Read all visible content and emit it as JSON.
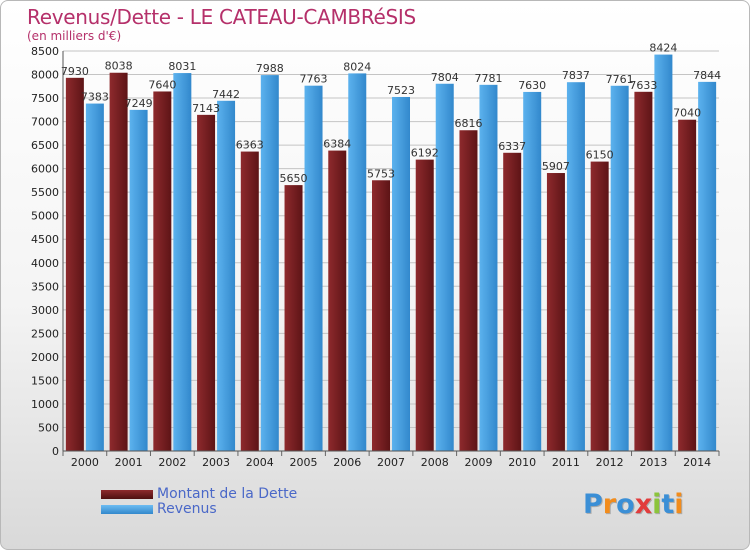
{
  "title": "Revenus/Dette - LE CATEAU-CAMBRéSIS",
  "subtitle": "(en milliers d'€)",
  "logo_text": "Proxiti",
  "colors": {
    "dette": "#7a2224",
    "revenus": "#4aa3e3",
    "title": "#b5306a",
    "legend_text": "#4a68c8",
    "grid": "#c4c4c4"
  },
  "chart_data": {
    "type": "bar",
    "title": "Revenus/Dette - LE CATEAU-CAMBRéSIS",
    "subtitle": "(en milliers d'€)",
    "xlabel": "",
    "ylabel": "",
    "ylim": [
      0,
      8500
    ],
    "ytick_step": 500,
    "grid": true,
    "legend_position": "bottom-left",
    "categories": [
      "2000",
      "2001",
      "2002",
      "2003",
      "2004",
      "2005",
      "2006",
      "2007",
      "2008",
      "2009",
      "2010",
      "2011",
      "2012",
      "2013",
      "2014"
    ],
    "series": [
      {
        "name": "Montant de la Dette",
        "values": [
          7930,
          8038,
          7640,
          7143,
          6363,
          5650,
          6384,
          5753,
          6192,
          6816,
          6337,
          5907,
          6150,
          7633,
          7040
        ],
        "labels": [
          "7930",
          "8038",
          "7640",
          "7143",
          "6363",
          "5650",
          "6384",
          "5753",
          "6192",
          "6816",
          "6337",
          "5907",
          "6150",
          "7633",
          "7040"
        ]
      },
      {
        "name": "Revenus",
        "values": [
          7383,
          7249,
          8031,
          7442,
          7988,
          7763,
          8024,
          7523,
          7804,
          7781,
          7630,
          7837,
          7761,
          8424,
          7844
        ],
        "labels": [
          "7383",
          "7249",
          "8031",
          "7442",
          "7988",
          "7763",
          "8024",
          "7523",
          "7804",
          "7781",
          "7630",
          "7837",
          "7761",
          "8424",
          "7844"
        ]
      }
    ]
  }
}
